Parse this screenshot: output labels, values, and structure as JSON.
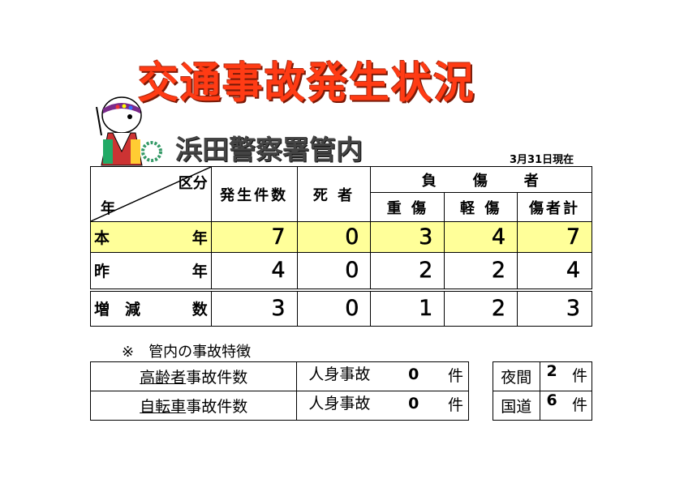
{
  "title": "交通事故発生状況",
  "subtitle": "浜田警察署管内",
  "date": "3月31日現在",
  "table": {
    "corner_top": "区分",
    "corner_bottom": "年",
    "headers": {
      "occurrences": "発生件数",
      "deaths": "死 者",
      "injured": "負　　傷　　者",
      "serious": "重 傷",
      "minor": "軽 傷",
      "total": "傷者計"
    },
    "rows": [
      {
        "label_a": "本",
        "label_b": "年",
        "values": [
          "7",
          "0",
          "3",
          "4",
          "7"
        ]
      },
      {
        "label_a": "昨",
        "label_b": "年",
        "values": [
          "4",
          "0",
          "2",
          "2",
          "4"
        ]
      },
      {
        "label_a": "増　減",
        "label_b": "数",
        "values": [
          "3",
          "0",
          "1",
          "2",
          "3"
        ]
      }
    ]
  },
  "note": "※　管内の事故特徴",
  "features": [
    {
      "u": "高齢者",
      "rest": "事故件数",
      "type": "人身事故",
      "count": "0",
      "unit": "件"
    },
    {
      "u": "自転車",
      "rest": "事故件数",
      "type": "人身事故",
      "count": "0",
      "unit": "件"
    }
  ],
  "side": [
    {
      "label": "夜間",
      "count": "2",
      "unit": "件"
    },
    {
      "label": "国道",
      "count": "6",
      "unit": "件"
    }
  ],
  "colors": {
    "title": "#ff3b14",
    "highlight": "#ffff99"
  }
}
